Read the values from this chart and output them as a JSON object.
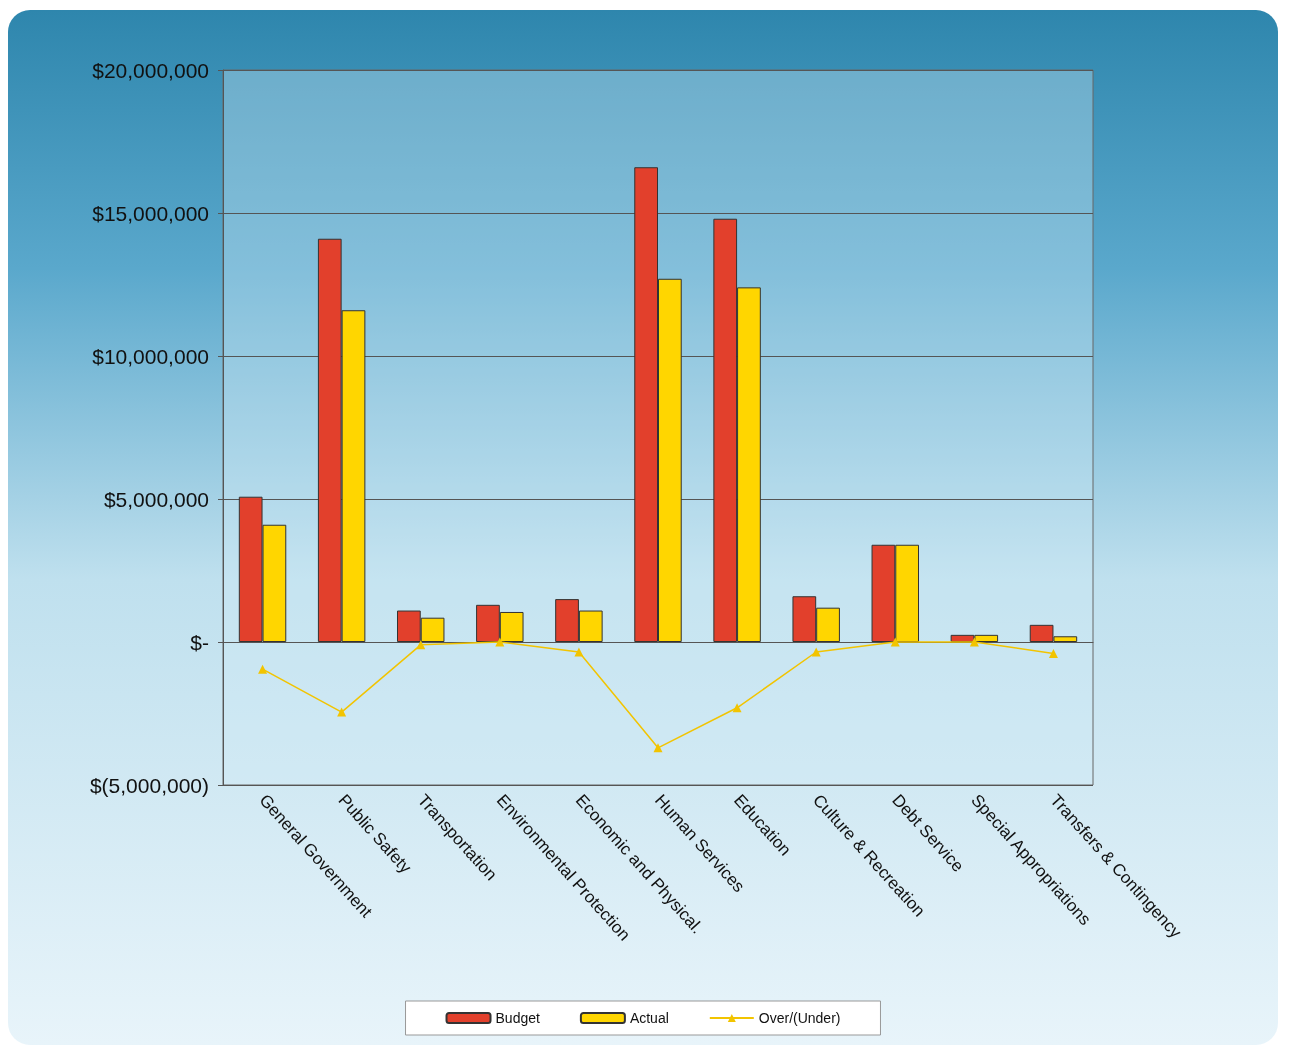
{
  "chart_data": {
    "type": "bar",
    "categories": [
      "General Government",
      "Public Safety",
      "Transportation",
      "Environmental Protection",
      "Economic and Physical.",
      "Human Services",
      "Education",
      "Culture & Recreation",
      "Debt Service",
      "Special Appropriations",
      "Transfers & Contingency"
    ],
    "series": [
      {
        "name": "Budget",
        "color": "#e2402c",
        "values": [
          5080000,
          14100000,
          1100000,
          1300000,
          1500000,
          16600000,
          14800000,
          1600000,
          3400000,
          250000,
          600000
        ]
      },
      {
        "name": "Actual",
        "color": "#ffd600",
        "values": [
          4100000,
          11600000,
          850000,
          1050000,
          1100000,
          12700000,
          12400000,
          1200000,
          3400000,
          250000,
          200000
        ]
      },
      {
        "name": "Over/(Under)",
        "type": "line",
        "color": "#f2c400",
        "marker": "triangle",
        "values": [
          -950000,
          -2450000,
          -100000,
          0,
          -350000,
          -3700000,
          -2300000,
          -350000,
          0,
          0,
          -400000
        ]
      }
    ],
    "ylim": [
      -5000000,
      20000000
    ],
    "yticks": [
      {
        "value": -5000000,
        "label": "$(5,000,000)"
      },
      {
        "value": 0,
        "label": "$-"
      },
      {
        "value": 5000000,
        "label": "$5,000,000"
      },
      {
        "value": 10000000,
        "label": "$10,000,000"
      },
      {
        "value": 15000000,
        "label": "$15,000,000"
      },
      {
        "value": 20000000,
        "label": "$20,000,000"
      }
    ],
    "grid": "y",
    "legend": "bottom"
  }
}
